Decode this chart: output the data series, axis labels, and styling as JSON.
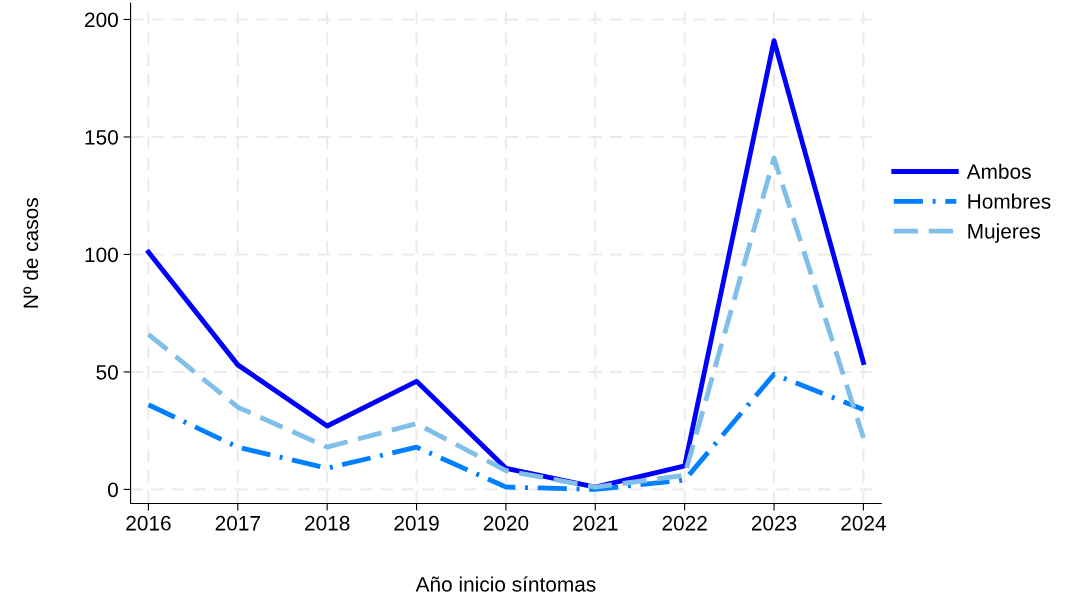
{
  "chart_data": {
    "type": "line",
    "xlabel": "Año inicio síntomas",
    "ylabel": "Nº de casos",
    "x": [
      2016,
      2017,
      2018,
      2019,
      2020,
      2021,
      2022,
      2023,
      2024
    ],
    "series": [
      {
        "name": "Ambos",
        "color": "#0000ff",
        "line_style": "solid",
        "values": [
          101,
          53,
          27,
          46,
          9,
          1,
          10,
          191,
          54
        ]
      },
      {
        "name": "Hombres",
        "color": "#0080ff",
        "line_style": "dashdot",
        "values": [
          36,
          18,
          9,
          18,
          1,
          0,
          4,
          49,
          34
        ]
      },
      {
        "name": "Mujeres",
        "color": "#80c0e8",
        "line_style": "dashed",
        "values": [
          66,
          35,
          18,
          28,
          8,
          1,
          6,
          141,
          22
        ]
      }
    ],
    "xlim": [
      2015.8,
      2024.2
    ],
    "xticks": [
      2016,
      2017,
      2018,
      2019,
      2020,
      2021,
      2022,
      2023,
      2024
    ],
    "ylim": [
      -6,
      207
    ],
    "yticks": [
      0,
      50,
      100,
      150,
      200
    ],
    "grid": true,
    "legend": "right",
    "marker": "none"
  }
}
